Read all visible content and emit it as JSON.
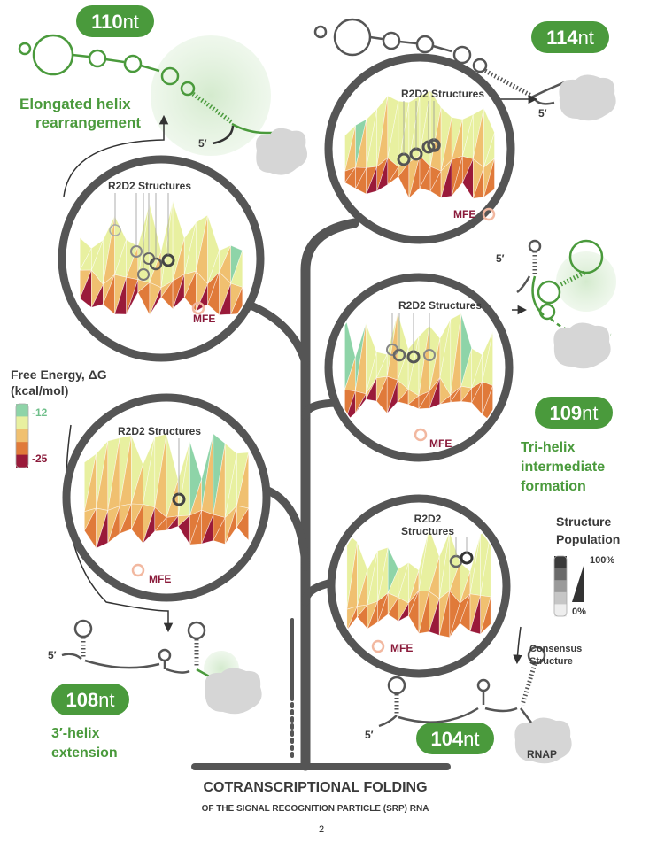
{
  "title": "COTRANSCRIPTIONAL FOLDING",
  "subtitle": "OF THE SIGNAL RECOGNITION PARTICLE (SRP) RNA",
  "page_number": "2",
  "stages": [
    {
      "id": "110",
      "num": "110",
      "unit": "nt",
      "caption": [
        "Elongated helix",
        "rearrangement"
      ]
    },
    {
      "id": "114",
      "num": "114",
      "unit": "nt",
      "caption": []
    },
    {
      "id": "109",
      "num": "109",
      "unit": "nt",
      "caption": [
        "Tri-helix",
        "intermediate",
        "formation"
      ]
    },
    {
      "id": "108",
      "num": "108",
      "unit": "nt",
      "caption": [
        "3′-helix",
        "extension"
      ]
    },
    {
      "id": "104",
      "num": "104",
      "unit": "nt",
      "caption": []
    }
  ],
  "landscape_labels": {
    "r2d2": "R2D2 Structures",
    "r2d2_line1": "R2D2",
    "r2d2_line2": "Structures",
    "mfe": "MFE",
    "consensus_line1": "Consensus",
    "consensus_line2": "Structure"
  },
  "five_prime": "5′",
  "rnap": "RNAP",
  "free_energy_legend": {
    "title_line1": "Free Energy, ΔG",
    "title_line2": "(kcal/mol)",
    "max": "-12",
    "min": "-25",
    "colors": [
      "#8ed4a8",
      "#e8f0a0",
      "#f0c070",
      "#e07a3a",
      "#9a1a3a"
    ]
  },
  "population_legend": {
    "title_line1": "Structure",
    "title_line2": "Population",
    "max": "100%",
    "min": "0%",
    "colors": [
      "#3a3a3a",
      "#6a6a6a",
      "#9a9a9a",
      "#c6c6c6",
      "#eeeeee"
    ]
  },
  "colors": {
    "accent_green": "#4a9a3c",
    "tree_gray": "#555555",
    "mfe_ring": "#f2b8a0"
  }
}
